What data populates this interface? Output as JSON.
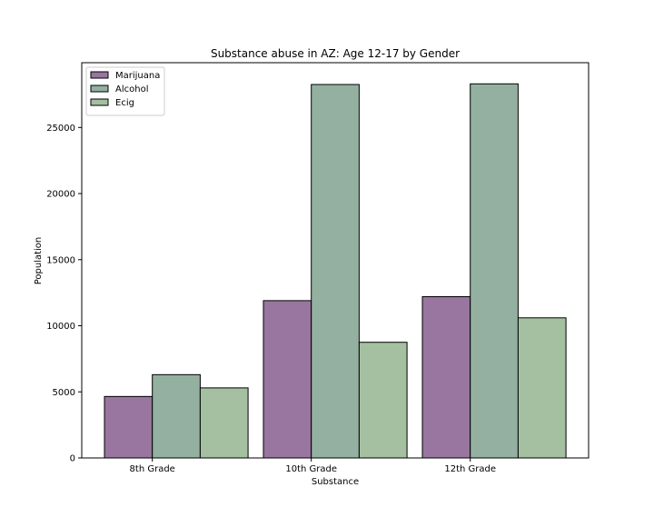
{
  "chart_data": {
    "type": "bar",
    "title": "Substance abuse in AZ: Age 12-17 by Gender",
    "xlabel": "Substance",
    "ylabel": "Population",
    "categories": [
      "8th Grade",
      "10th Grade",
      "12th Grade"
    ],
    "series": [
      {
        "name": "Marijuana",
        "color": "#98769f",
        "values": [
          4650,
          11900,
          12200
        ]
      },
      {
        "name": "Alcohol",
        "color": "#94b0a1",
        "values": [
          6300,
          28250,
          28300
        ]
      },
      {
        "name": "Ecig",
        "color": "#a5bfa1",
        "values": [
          5300,
          8750,
          10600
        ]
      }
    ],
    "ylim": [
      0,
      29900
    ],
    "yticks": [
      0,
      5000,
      10000,
      15000,
      20000,
      25000
    ],
    "legend_position": "top-left",
    "grid": false
  }
}
